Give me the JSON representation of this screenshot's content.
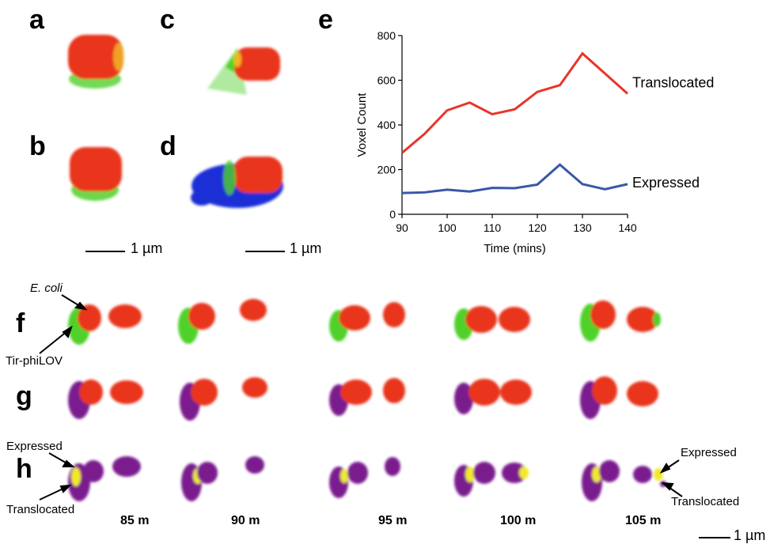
{
  "panels": {
    "a": "a",
    "b": "b",
    "c": "c",
    "d": "d",
    "e": "e",
    "f": "f",
    "g": "g",
    "h": "h"
  },
  "scalebars": {
    "left": "1 µm",
    "middle": "1 µm",
    "bottom": "1 µm"
  },
  "annotations": {
    "ecoli": "E. coli",
    "tir": "Tir-phiLOV",
    "expressed_left": "Expressed",
    "translocated_left": "Translocated",
    "expressed_right": "Expressed",
    "translocated_right": "Translocated"
  },
  "time_labels": [
    "85 m",
    "90 m",
    "95 m",
    "100 m",
    "105 m"
  ],
  "colors": {
    "translocated": "#e8352a",
    "expressed": "#3a57a7",
    "cell_red": "#e8361f",
    "cell_green": "#4fd12c",
    "cell_blue": "#1b2fd6",
    "cell_purple": "#7a1b8e",
    "cell_yellow": "#f1e92a"
  },
  "chart_data": {
    "type": "line",
    "title": "",
    "xlabel": "Time (mins)",
    "ylabel": "Voxel Count",
    "xlim": [
      90,
      140
    ],
    "ylim": [
      0,
      800
    ],
    "xticks": [
      90,
      100,
      110,
      120,
      130,
      140
    ],
    "yticks": [
      0,
      200,
      400,
      600,
      800
    ],
    "grid": false,
    "legend": "inline labels at line ends",
    "series": [
      {
        "name": "Translocated",
        "color": "#e8352a",
        "x": [
          90,
          95,
          100,
          105,
          110,
          115,
          120,
          125,
          130,
          135,
          140
        ],
        "y": [
          275,
          360,
          465,
          500,
          448,
          470,
          548,
          578,
          720,
          630,
          540
        ]
      },
      {
        "name": "Expressed",
        "color": "#3a57a7",
        "x": [
          90,
          95,
          100,
          105,
          110,
          115,
          120,
          125,
          130,
          135,
          140
        ],
        "y": [
          95,
          98,
          110,
          102,
          118,
          117,
          133,
          222,
          135,
          112,
          135
        ]
      }
    ]
  }
}
